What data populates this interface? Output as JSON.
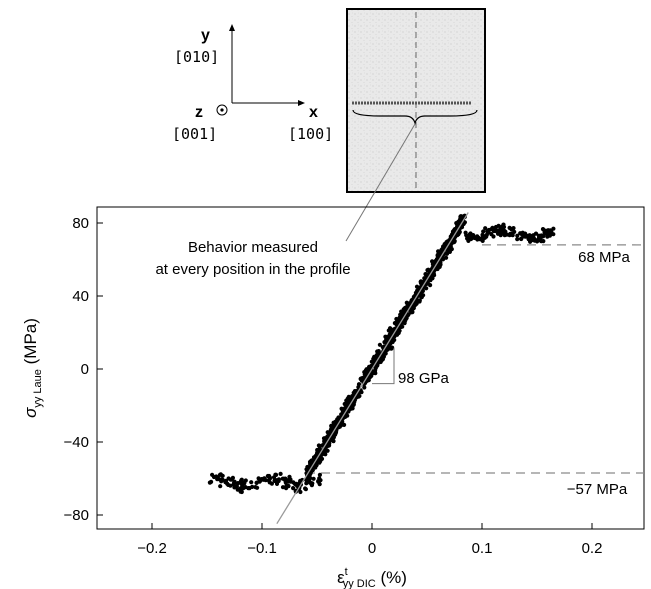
{
  "axes_legend": {
    "y_label": "y",
    "y_index": "[010]",
    "z_label": "z",
    "z_index": "[001]",
    "x_label": "x",
    "x_index": "[100]"
  },
  "annotations": {
    "behavior_line1": "Behavior measured",
    "behavior_line2": "at every position in the profile",
    "upper_stress": "68 MPa",
    "lower_stress": "−57 MPa",
    "modulus": "98 GPa"
  },
  "colors": {
    "points": "#000000",
    "fit_line": "#9a9a9a",
    "dashed": "#8a8a8a",
    "sample_fill": "#e6e6e6"
  },
  "chart_data": {
    "type": "scatter",
    "xlabel": "ε",
    "xlabel_sup": "t",
    "xlabel_sub": "yy DIC",
    "xlabel_unit": " (%)",
    "ylabel": "σ",
    "ylabel_sub": "yy Laue",
    "ylabel_unit": " (MPa)",
    "xlim": [
      -0.25,
      0.25
    ],
    "ylim": [
      -85,
      85
    ],
    "xticks": [
      -0.2,
      -0.1,
      0,
      0.1,
      0.2
    ],
    "xtick_labels": [
      "−0.2",
      "−0.1",
      "0",
      "0.1",
      "0.2"
    ],
    "yticks": [
      -80,
      -40,
      0,
      40,
      80
    ],
    "ytick_labels": [
      "−80",
      "−40",
      "0",
      "40",
      "80"
    ],
    "grid": false,
    "reference_lines": [
      {
        "y": 68,
        "label": "68 MPa"
      },
      {
        "y": -57,
        "label": "−57 MPa"
      }
    ],
    "fit_line": {
      "slope_mpa_per_percent": 980,
      "intercept_mpa": 0,
      "label": "98 GPa"
    },
    "segments": [
      {
        "name": "lower plateau",
        "x_range": [
          -0.148,
          -0.045
        ],
        "y_center": -62,
        "y_spread": 5
      },
      {
        "name": "elastic region",
        "x_range": [
          -0.06,
          0.085
        ],
        "slope": 980,
        "y_spread": 6
      },
      {
        "name": "upper plateau",
        "x_range": [
          0.085,
          0.165
        ],
        "y_center": 74,
        "y_spread": 5
      }
    ]
  }
}
